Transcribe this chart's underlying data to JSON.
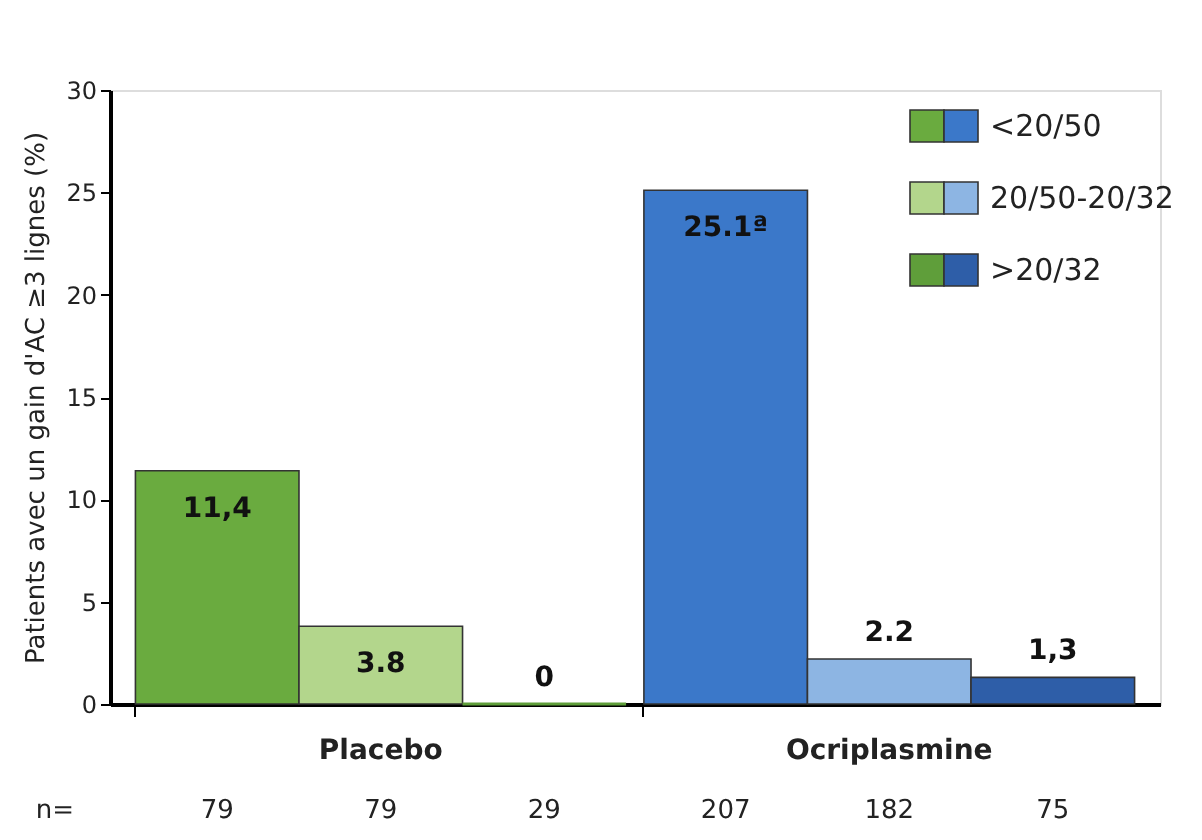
{
  "chart_data": {
    "type": "bar",
    "ylabel": "Patients avec un gain d'AC ≥3 lignes (%)",
    "categories": [
      "Placebo",
      "Ocriplasmine"
    ],
    "series": [
      {
        "name": "<20/50",
        "colors": [
          "#6aab3f",
          "#3b78c9"
        ],
        "values": [
          11.4,
          25.1
        ],
        "value_labels": [
          "11,4",
          "25.1ª"
        ]
      },
      {
        "name": "20/50-20/32",
        "colors": [
          "#b3d68c",
          "#8db5e3"
        ],
        "values": [
          3.8,
          2.2
        ],
        "value_labels": [
          "3.8",
          "2.2"
        ]
      },
      {
        "name": ">20/32",
        "colors": [
          "#5f9e3a",
          "#2e5ea8"
        ],
        "values": [
          0,
          1.3
        ],
        "value_labels": [
          "0",
          "1,3"
        ]
      }
    ],
    "ylim": [
      0,
      30
    ],
    "yticks": [
      0,
      5,
      10,
      15,
      20,
      25,
      30
    ],
    "grid": false,
    "legend": "top right",
    "annotations": [
      "n=",
      "79",
      "79",
      "29",
      "207",
      "182",
      "75"
    ]
  }
}
